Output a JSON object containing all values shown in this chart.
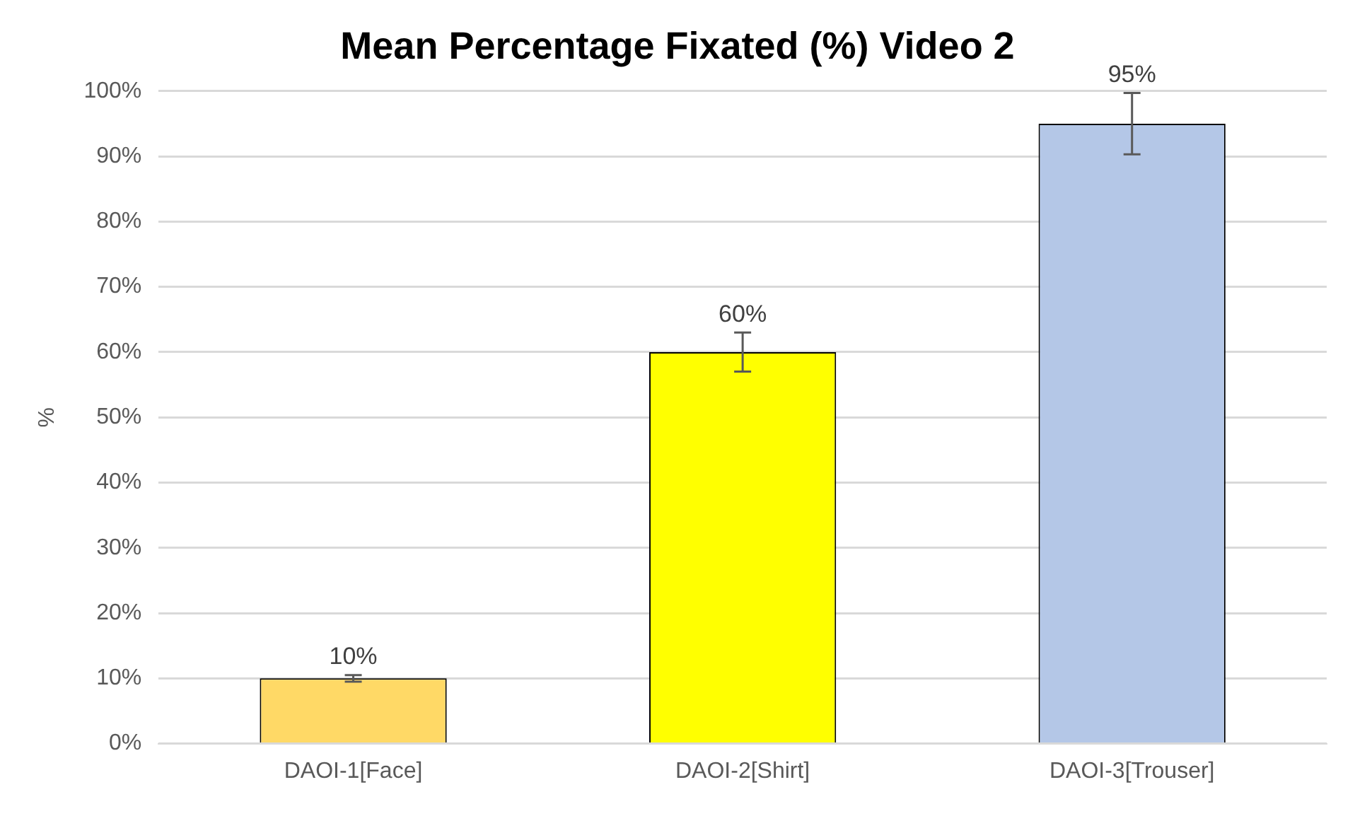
{
  "chart_data": {
    "type": "bar",
    "title": "Mean Percentage Fixated (%) Video 2",
    "ylabel": "%",
    "categories": [
      "DAOI-1[Face]",
      "DAOI-2[Shirt]",
      "DAOI-3[Trouser]"
    ],
    "values": [
      10,
      60,
      95
    ],
    "colors": [
      "#ffd966",
      "#ffff00",
      "#b4c7e7"
    ],
    "errors": [
      0.5,
      3,
      4.7
    ],
    "value_labels": [
      "10%",
      "60%",
      "95%"
    ],
    "ylim": [
      0,
      100
    ],
    "yticks": [
      {
        "value": 0,
        "label": "0%"
      },
      {
        "value": 10,
        "label": "10%"
      },
      {
        "value": 20,
        "label": "20%"
      },
      {
        "value": 30,
        "label": "30%"
      },
      {
        "value": 40,
        "label": "40%"
      },
      {
        "value": 50,
        "label": "50%"
      },
      {
        "value": 60,
        "label": "60%"
      },
      {
        "value": 70,
        "label": "70%"
      },
      {
        "value": 80,
        "label": "80%"
      },
      {
        "value": 90,
        "label": "90%"
      },
      {
        "value": 100,
        "label": "100%"
      }
    ],
    "grid": "y",
    "legend": false
  }
}
